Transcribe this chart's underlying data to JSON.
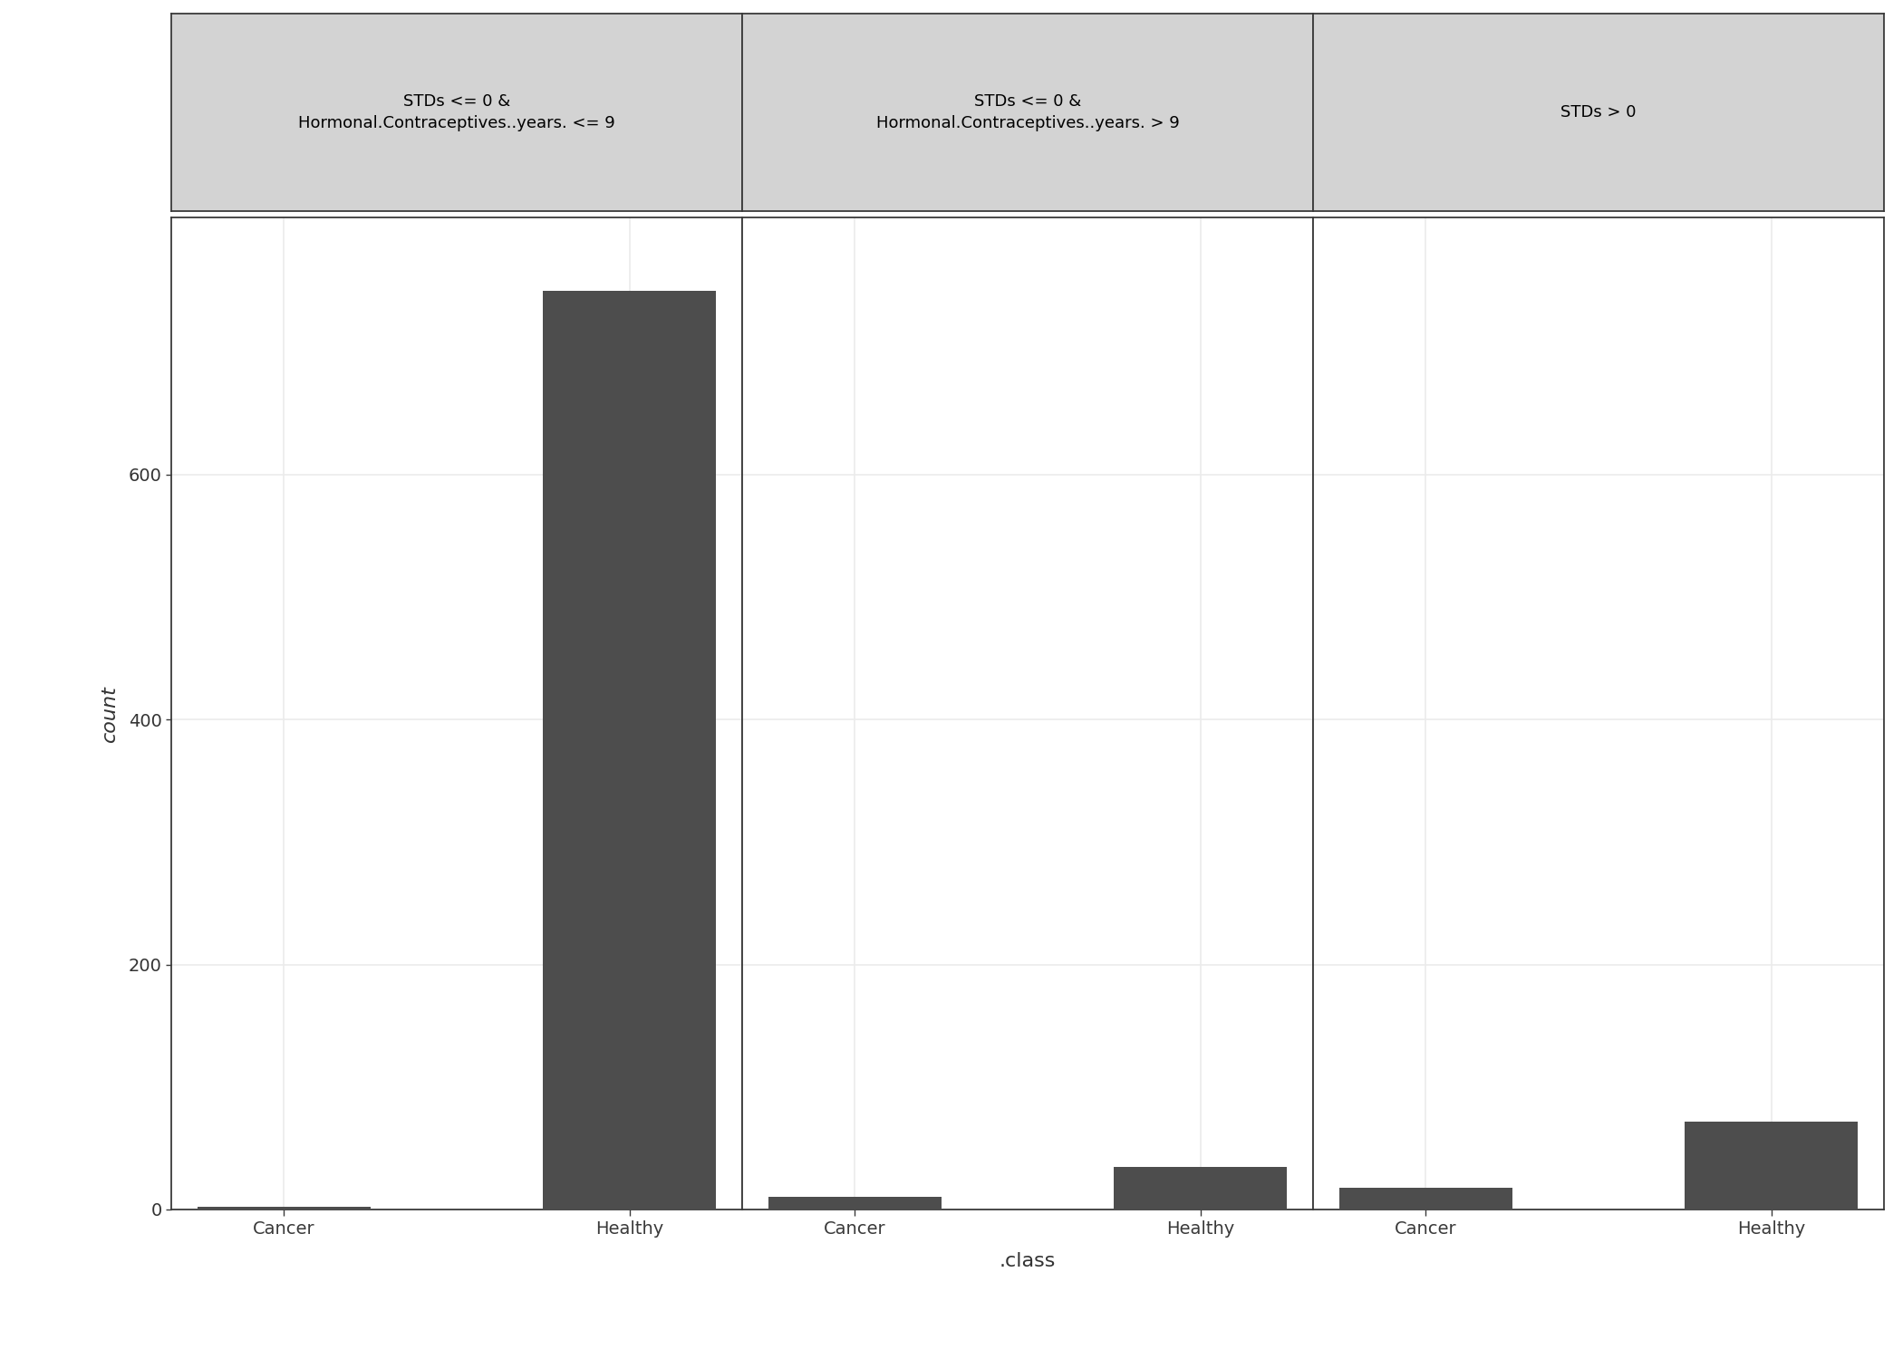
{
  "panels": [
    {
      "title": "STDs <= 0 &\nHormonal.Contraceptives..years. <= 9",
      "categories": [
        "Cancer",
        "Healthy"
      ],
      "values": [
        2,
        750
      ]
    },
    {
      "title": "STDs <= 0 &\nHormonal.Contraceptives..years. > 9",
      "categories": [
        "Cancer",
        "Healthy"
      ],
      "values": [
        10,
        35
      ]
    },
    {
      "title": "STDs > 0",
      "categories": [
        "Cancer",
        "Healthy"
      ],
      "values": [
        18,
        72
      ]
    }
  ],
  "bar_color": "#4d4d4d",
  "bar_width": 0.5,
  "ylabel": "count",
  "xlabel": ".class",
  "ylim": [
    0,
    810
  ],
  "yticks": [
    0,
    200,
    400,
    600
  ],
  "background_color": "#ffffff",
  "panel_bg_color": "#ffffff",
  "strip_header_color": "#d3d3d3",
  "strip_border_color": "#3a3a3a",
  "grid_color": "#ebebeb",
  "grid_linewidth": 1.2,
  "title_fontsize": 14,
  "axis_label_fontsize": 16,
  "tick_fontsize": 14,
  "tick_label_color": "#333333",
  "ylabel_color": "#333333",
  "xlabel_color": "#333333",
  "spine_color": "#3a3a3a",
  "spine_linewidth": 1.3,
  "strip_fontsize": 13
}
